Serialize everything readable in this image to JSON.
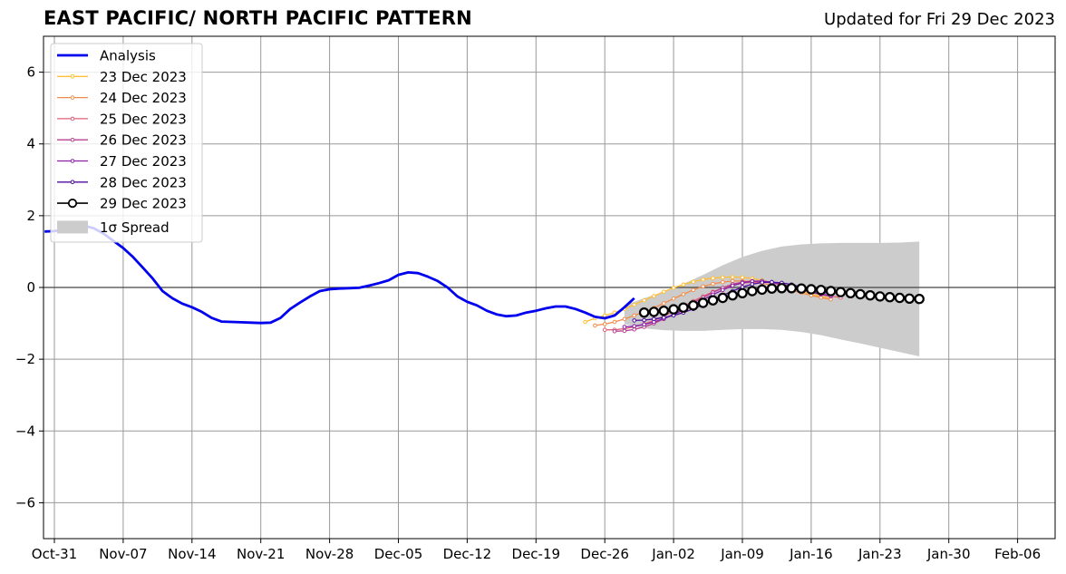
{
  "chart_data": {
    "type": "line",
    "title": "EAST PACIFIC/ NORTH PACIFIC PATTERN",
    "subtitle": "Updated for Fri 29 Dec 2023",
    "x_tick_labels": [
      "Oct-31",
      "Nov-07",
      "Nov-14",
      "Nov-21",
      "Nov-28",
      "Dec-05",
      "Dec-12",
      "Dec-19",
      "Dec-26",
      "Jan-02",
      "Jan-09",
      "Jan-16",
      "Jan-23",
      "Jan-30",
      "Feb-06"
    ],
    "x_tick_days": [
      0,
      7,
      14,
      21,
      28,
      35,
      42,
      49,
      56,
      63,
      70,
      77,
      84,
      91,
      98
    ],
    "y_tick_labels": [
      "−6",
      "−4",
      "−2",
      "0",
      "2",
      "4",
      "6"
    ],
    "y_tick_values": [
      -6,
      -4,
      -2,
      0,
      2,
      4,
      6
    ],
    "xlim": [
      "2023-10-30",
      "2024-02-10"
    ],
    "ylim": [
      -7,
      7
    ],
    "grid": true,
    "legend_position": "top-left",
    "legend": [
      "Analysis",
      "23 Dec 2023",
      "24 Dec 2023",
      "25 Dec 2023",
      "26 Dec 2023",
      "27 Dec 2023",
      "28 Dec 2023",
      "29 Dec 2023",
      "1σ Spread"
    ],
    "analysis": {
      "name": "Analysis",
      "color": "#0000ee",
      "x": [
        "2023-10-30",
        "2023-10-31",
        "2023-11-01",
        "2023-11-02",
        "2023-11-03",
        "2023-11-04",
        "2023-11-05",
        "2023-11-06",
        "2023-11-07",
        "2023-11-08",
        "2023-11-09",
        "2023-11-10",
        "2023-11-11",
        "2023-11-12",
        "2023-11-13",
        "2023-11-14",
        "2023-11-15",
        "2023-11-16",
        "2023-11-17",
        "2023-11-18",
        "2023-11-19",
        "2023-11-20",
        "2023-11-21",
        "2023-11-22",
        "2023-11-23",
        "2023-11-24",
        "2023-11-25",
        "2023-11-26",
        "2023-11-27",
        "2023-11-28",
        "2023-11-29",
        "2023-11-30",
        "2023-12-01",
        "2023-12-02",
        "2023-12-03",
        "2023-12-04",
        "2023-12-05",
        "2023-12-06",
        "2023-12-07",
        "2023-12-08",
        "2023-12-09",
        "2023-12-10",
        "2023-12-11",
        "2023-12-12",
        "2023-12-13",
        "2023-12-14",
        "2023-12-15",
        "2023-12-16",
        "2023-12-17",
        "2023-12-18",
        "2023-12-19",
        "2023-12-20",
        "2023-12-21",
        "2023-12-22",
        "2023-12-23",
        "2023-12-24",
        "2023-12-25",
        "2023-12-26",
        "2023-12-27",
        "2023-12-28",
        "2023-12-29"
      ],
      "y": [
        1.56,
        1.57,
        1.62,
        1.7,
        1.72,
        1.65,
        1.5,
        1.3,
        1.1,
        0.85,
        0.55,
        0.25,
        -0.1,
        -0.3,
        -0.45,
        -0.55,
        -0.68,
        -0.85,
        -0.95,
        -0.96,
        -0.97,
        -0.98,
        -0.99,
        -0.98,
        -0.85,
        -0.6,
        -0.42,
        -0.25,
        -0.1,
        -0.05,
        -0.03,
        -0.02,
        -0.01,
        0.05,
        0.12,
        0.2,
        0.35,
        0.42,
        0.4,
        0.3,
        0.18,
        0.0,
        -0.25,
        -0.4,
        -0.5,
        -0.65,
        -0.75,
        -0.8,
        -0.78,
        -0.7,
        -0.65,
        -0.58,
        -0.53,
        -0.53,
        -0.6,
        -0.7,
        -0.82,
        -0.86,
        -0.78,
        -0.55,
        -0.3
      ]
    },
    "forecasts": [
      {
        "name": "23 Dec 2023",
        "color": "#ffbe33",
        "start": "2023-12-24",
        "y": [
          -0.96,
          -0.86,
          -0.78,
          -0.7,
          -0.6,
          -0.48,
          -0.36,
          -0.24,
          -0.12,
          -0.01,
          0.08,
          0.16,
          0.22,
          0.26,
          0.28,
          0.29,
          0.28,
          0.25,
          0.2,
          0.14,
          0.06,
          -0.02,
          -0.1,
          -0.18,
          -0.25,
          -0.3
        ]
      },
      {
        "name": "24 Dec 2023",
        "color": "#f28c4a",
        "start": "2023-12-25",
        "y": [
          -1.06,
          -1.02,
          -0.96,
          -0.88,
          -0.78,
          -0.68,
          -0.57,
          -0.44,
          -0.31,
          -0.19,
          -0.07,
          0.03,
          0.1,
          0.15,
          0.18,
          0.18,
          0.16,
          0.12,
          0.06,
          -0.01,
          -0.08,
          -0.15,
          -0.22,
          -0.28,
          -0.33
        ]
      },
      {
        "name": "25 Dec 2023",
        "color": "#e0607a",
        "start": "2023-12-26",
        "y": [
          -1.18,
          -1.18,
          -1.15,
          -1.1,
          -1.02,
          -0.92,
          -0.8,
          -0.66,
          -0.52,
          -0.38,
          -0.25,
          -0.12,
          -0.02,
          0.06,
          0.12,
          0.15,
          0.15,
          0.13,
          0.08,
          0.02,
          -0.05,
          -0.12,
          -0.18,
          -0.24,
          -0.28
        ]
      },
      {
        "name": "26 Dec 2023",
        "color": "#b8408f",
        "start": "2023-12-27",
        "y": [
          -1.22,
          -1.21,
          -1.17,
          -1.1,
          -1.0,
          -0.88,
          -0.74,
          -0.59,
          -0.43,
          -0.28,
          -0.14,
          -0.01,
          0.09,
          0.15,
          0.18,
          0.17,
          0.13,
          0.07,
          0.0,
          -0.07,
          -0.14,
          -0.2,
          -0.25
        ]
      },
      {
        "name": "27 Dec 2023",
        "color": "#8a1fa8",
        "start": "2023-12-28",
        "y": [
          -1.1,
          -1.08,
          -1.03,
          -0.96,
          -0.87,
          -0.76,
          -0.63,
          -0.49,
          -0.34,
          -0.2,
          -0.07,
          0.05,
          0.13,
          0.17,
          0.18,
          0.15,
          0.09,
          0.02,
          -0.05,
          -0.12,
          -0.18,
          -0.23
        ]
      },
      {
        "name": "28 Dec 2023",
        "color": "#4b0c9e",
        "start": "2023-12-29",
        "y": [
          -0.92,
          -0.91,
          -0.88,
          -0.84,
          -0.78,
          -0.7,
          -0.6,
          -0.48,
          -0.35,
          -0.22,
          -0.1,
          0.01,
          0.09,
          0.14,
          0.15,
          0.13,
          0.08,
          0.01,
          -0.06,
          -0.12,
          -0.18
        ]
      },
      {
        "name": "29 Dec 2023",
        "color": "#000000",
        "start": "2023-12-30",
        "y": [
          -0.7,
          -0.68,
          -0.65,
          -0.61,
          -0.56,
          -0.5,
          -0.43,
          -0.36,
          -0.29,
          -0.22,
          -0.16,
          -0.1,
          -0.06,
          -0.03,
          -0.02,
          -0.02,
          -0.03,
          -0.05,
          -0.07,
          -0.1,
          -0.13,
          -0.16,
          -0.19,
          -0.22,
          -0.25,
          -0.27,
          -0.29,
          -0.31,
          -0.32
        ]
      }
    ],
    "spread": {
      "name": "1σ Spread",
      "color": "#cccccc",
      "x": [
        "2023-12-28",
        "2023-12-30",
        "2024-01-01",
        "2024-01-03",
        "2024-01-05",
        "2024-01-07",
        "2024-01-09",
        "2024-01-11",
        "2024-01-13",
        "2024-01-15",
        "2024-01-17",
        "2024-01-19",
        "2024-01-21",
        "2024-01-23",
        "2024-01-25",
        "2024-01-27"
      ],
      "upper": [
        -0.5,
        -0.3,
        -0.12,
        0.1,
        0.35,
        0.62,
        0.85,
        1.02,
        1.14,
        1.2,
        1.23,
        1.24,
        1.24,
        1.24,
        1.25,
        1.28
      ],
      "lower": [
        -1.02,
        -1.14,
        -1.19,
        -1.21,
        -1.21,
        -1.18,
        -1.16,
        -1.16,
        -1.18,
        -1.24,
        -1.33,
        -1.45,
        -1.56,
        -1.68,
        -1.8,
        -1.92
      ]
    }
  }
}
